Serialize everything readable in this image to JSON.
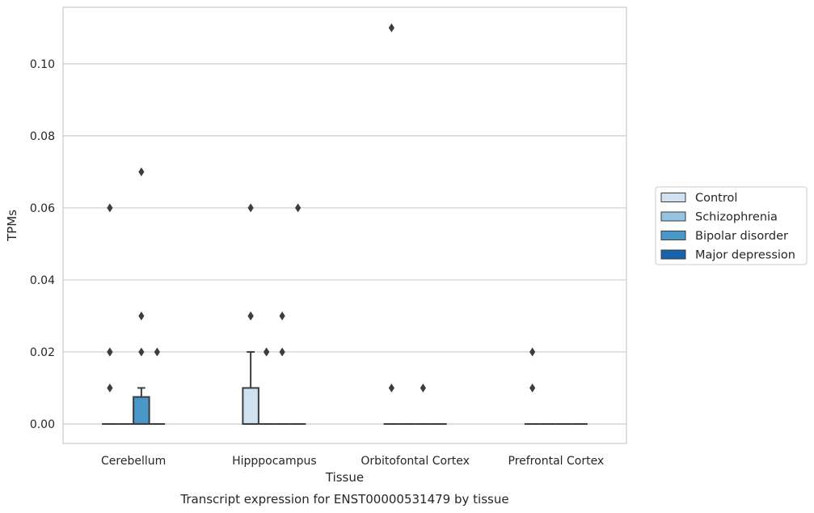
{
  "chart_data": {
    "type": "box",
    "title": "Transcript expression for ENST00000531479 by tissue",
    "xlabel": "Tissue",
    "ylabel": "TPMs",
    "ylim": [
      -0.0054,
      0.1157
    ],
    "yticks": [
      0.0,
      0.02,
      0.04,
      0.06,
      0.08,
      0.1
    ],
    "ytick_labels": [
      "0.00",
      "0.02",
      "0.04",
      "0.06",
      "0.08",
      "0.10"
    ],
    "grid": true,
    "legend_position": "right",
    "categories": [
      "Cerebellum",
      "Hipppocampus",
      "Orbitofontal Cortex",
      "Prefrontal Cortex"
    ],
    "series": [
      {
        "name": "Control",
        "color": "#d0e1f2",
        "boxes": [
          {
            "q1": 0,
            "median": 0,
            "q3": 0,
            "whisker_low": 0,
            "whisker_high": 0,
            "outliers": [
              0.01,
              0.02,
              0.02,
              0.06
            ]
          },
          {
            "q1": 0,
            "median": 0,
            "q3": 0.01,
            "whisker_low": 0,
            "whisker_high": 0.02,
            "outliers": [
              0.03,
              0.03,
              0.06
            ]
          },
          {
            "q1": 0,
            "median": 0,
            "q3": 0,
            "whisker_low": 0,
            "whisker_high": 0,
            "outliers": [
              0.01,
              0.11
            ]
          },
          {
            "q1": 0,
            "median": 0,
            "q3": 0,
            "whisker_low": 0,
            "whisker_high": 0,
            "outliers": [
              0.01,
              0.02
            ]
          }
        ]
      },
      {
        "name": "Schizophrenia",
        "color": "#94c4df",
        "boxes": [
          {
            "q1": 0,
            "median": 0,
            "q3": 0,
            "whisker_low": 0,
            "whisker_high": 0,
            "outliers": []
          },
          {
            "q1": 0,
            "median": 0,
            "q3": 0,
            "whisker_low": 0,
            "whisker_high": 0,
            "outliers": [
              0.02,
              0.02
            ]
          },
          {
            "q1": 0,
            "median": 0,
            "q3": 0,
            "whisker_low": 0,
            "whisker_high": 0,
            "outliers": []
          },
          {
            "q1": 0,
            "median": 0,
            "q3": 0,
            "whisker_low": 0,
            "whisker_high": 0,
            "outliers": []
          }
        ]
      },
      {
        "name": "Bipolar disorder",
        "color": "#4a98c9",
        "boxes": [
          {
            "q1": 0,
            "median": 0,
            "q3": 0.0075,
            "whisker_low": 0,
            "whisker_high": 0.01,
            "outliers": [
              0.02,
              0.03,
              0.07
            ]
          },
          {
            "q1": 0,
            "median": 0,
            "q3": 0,
            "whisker_low": 0,
            "whisker_high": 0,
            "outliers": [
              0.02,
              0.03
            ]
          },
          {
            "q1": 0,
            "median": 0,
            "q3": 0,
            "whisker_low": 0,
            "whisker_high": 0,
            "outliers": [
              0.01
            ]
          },
          {
            "q1": 0,
            "median": 0,
            "q3": 0,
            "whisker_low": 0,
            "whisker_high": 0,
            "outliers": []
          }
        ]
      },
      {
        "name": "Major depression",
        "color": "#1764ab",
        "boxes": [
          {
            "q1": 0,
            "median": 0,
            "q3": 0,
            "whisker_low": 0,
            "whisker_high": 0,
            "outliers": [
              0.02
            ]
          },
          {
            "q1": 0,
            "median": 0,
            "q3": 0,
            "whisker_low": 0,
            "whisker_high": 0,
            "outliers": [
              0.06
            ]
          },
          {
            "q1": 0,
            "median": 0,
            "q3": 0,
            "whisker_low": 0,
            "whisker_high": 0,
            "outliers": []
          },
          {
            "q1": 0,
            "median": 0,
            "q3": 0,
            "whisker_low": 0,
            "whisker_high": 0,
            "outliers": []
          }
        ]
      }
    ]
  }
}
